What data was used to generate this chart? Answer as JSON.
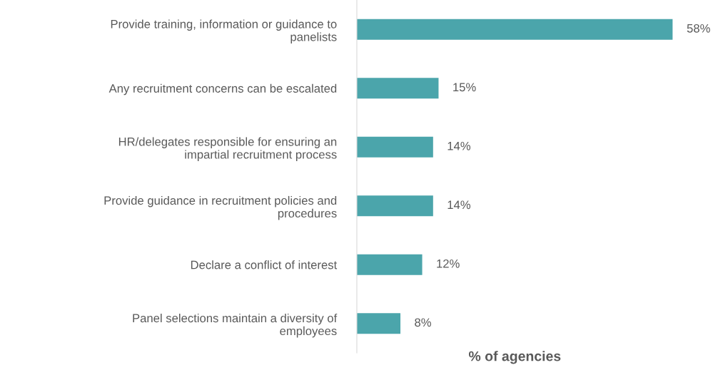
{
  "chart_data": {
    "type": "bar",
    "orientation": "horizontal",
    "xlabel": "% of agencies",
    "categories": [
      "Provide training, information or guidance to\npanelists",
      "Any recruitment concerns can be escalated",
      "HR/delegates responsible for ensuring an\nimpartial recruitment process",
      "Provide guidance in recruitment policies and\nprocedures",
      "Declare a conflict of interest",
      "Panel selections maintain a diversity of\nemployees"
    ],
    "values": [
      58,
      15,
      14,
      14,
      12,
      8
    ],
    "value_labels": [
      "58%",
      "15%",
      "14%",
      "14%",
      "12%",
      "8%"
    ],
    "color": "#4ba5ab",
    "grid": false,
    "legend": false
  }
}
